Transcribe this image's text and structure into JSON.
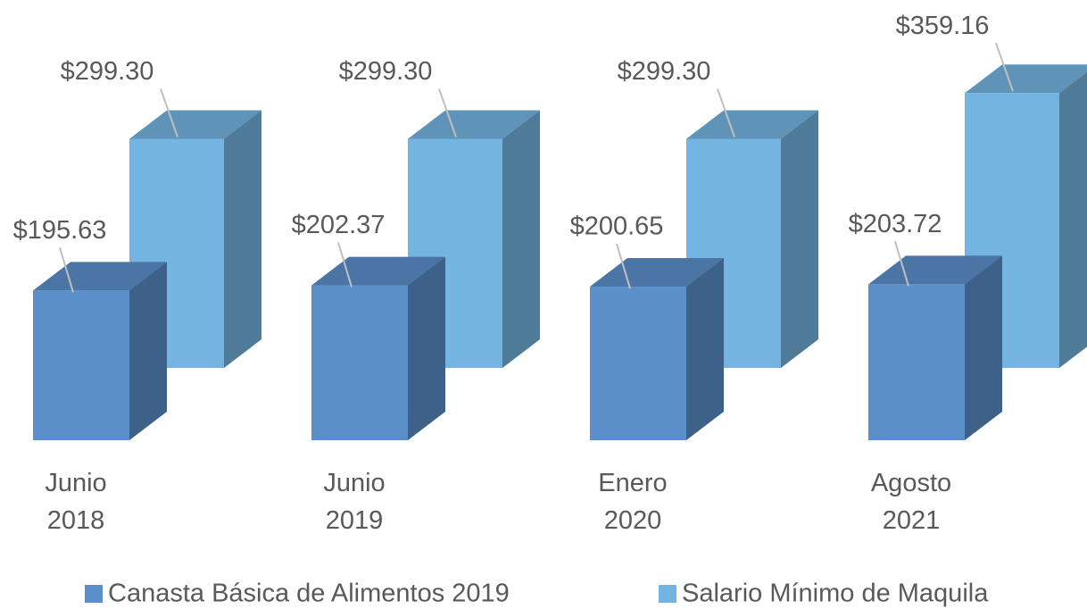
{
  "chart_data": {
    "type": "bar3d",
    "categories": [
      "Junio 2018",
      "Junio 2019",
      "Enero 2020",
      "Agosto 2021"
    ],
    "series": [
      {
        "name": "Canasta Básica de Alimentos 2019",
        "color": "#5b8fc9",
        "values": [
          195.63,
          202.37,
          200.65,
          203.72
        ],
        "value_labels": [
          "$195.63",
          "$202.37",
          "$200.65",
          "$203.72"
        ]
      },
      {
        "name": "Salario Mínimo de Maquila",
        "color": "#74b4e0",
        "values": [
          299.3,
          299.3,
          299.3,
          359.16
        ],
        "value_labels": [
          "$299.30",
          "$299.30",
          "$299.30",
          "$359.16"
        ]
      }
    ],
    "legend": "bottom"
  }
}
